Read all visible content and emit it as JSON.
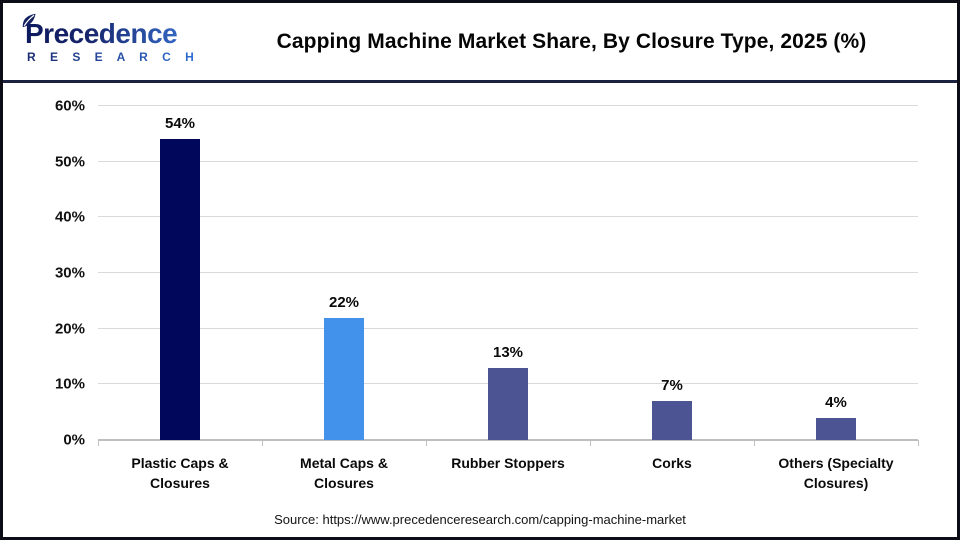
{
  "header": {
    "logo_word": "Precedence",
    "logo_sub": "R E S E A R C H",
    "title": "Capping Machine Market Share, By Closure Type, 2025 (%)"
  },
  "chart_data": {
    "type": "bar",
    "title": "Capping Machine Market Share, By Closure Type, 2025 (%)",
    "categories": [
      "Plastic Caps & Closures",
      "Metal Caps & Closures",
      "Rubber Stoppers",
      "Corks",
      "Others (Specialty Closures)"
    ],
    "values": [
      54,
      22,
      13,
      7,
      4
    ],
    "value_labels": [
      "54%",
      "22%",
      "13%",
      "7%",
      "4%"
    ],
    "bar_colors": [
      "#01085c",
      "#4292ec",
      "#4d5493",
      "#4d5493",
      "#4d5493"
    ],
    "xlabel": "",
    "ylabel": "",
    "ylim": [
      0,
      60
    ],
    "ytick_step": 10,
    "ytick_labels": [
      "0%",
      "10%",
      "20%",
      "30%",
      "40%",
      "50%",
      "60%"
    ],
    "grid": true,
    "legend": false,
    "gridline_color": "#d9d9d9",
    "axis_color": "#bfbfbf"
  },
  "footer": {
    "source": "Source: https://www.precedenceresearch.com/capping-machine-market"
  }
}
